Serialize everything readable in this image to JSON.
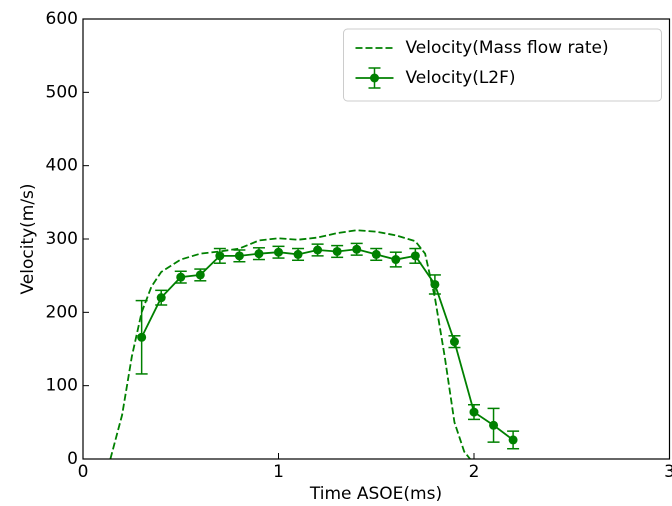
{
  "chart_data": {
    "type": "line",
    "xlabel": "Time ASOE(ms)",
    "ylabel": "Velocity(m/s)",
    "xlim": [
      0,
      3
    ],
    "ylim": [
      0,
      600
    ],
    "xticks": [
      0,
      1,
      2,
      3
    ],
    "yticks": [
      0,
      100,
      200,
      300,
      400,
      500,
      600
    ],
    "legend": "upper right",
    "series": [
      {
        "name": "Velocity(Mass flow rate)",
        "color": "#008000",
        "linestyle": "dashed",
        "x": [
          0.14,
          0.2,
          0.25,
          0.3,
          0.35,
          0.4,
          0.5,
          0.6,
          0.7,
          0.8,
          0.9,
          1.0,
          1.1,
          1.2,
          1.3,
          1.4,
          1.5,
          1.6,
          1.7,
          1.75,
          1.8,
          1.85,
          1.9,
          1.95,
          1.98
        ],
        "values": [
          0,
          60,
          140,
          200,
          235,
          255,
          272,
          280,
          283,
          287,
          298,
          301,
          299,
          302,
          308,
          312,
          310,
          305,
          297,
          280,
          220,
          140,
          50,
          10,
          0
        ]
      },
      {
        "name": "Velocity(L2F)",
        "color": "#008000",
        "linestyle": "solid",
        "marker": "o",
        "x": [
          0.3,
          0.4,
          0.5,
          0.6,
          0.7,
          0.8,
          0.9,
          1.0,
          1.1,
          1.2,
          1.3,
          1.4,
          1.5,
          1.6,
          1.7,
          1.8,
          1.9,
          2.0,
          2.1,
          2.2
        ],
        "values": [
          166,
          220,
          248,
          251,
          277,
          277,
          280,
          282,
          279,
          285,
          283,
          286,
          279,
          272,
          277,
          238,
          160,
          64,
          46,
          26
        ],
        "errors": [
          50,
          10,
          8,
          8,
          10,
          8,
          8,
          8,
          8,
          8,
          8,
          8,
          8,
          10,
          10,
          13,
          8,
          10,
          23,
          12
        ]
      }
    ]
  }
}
